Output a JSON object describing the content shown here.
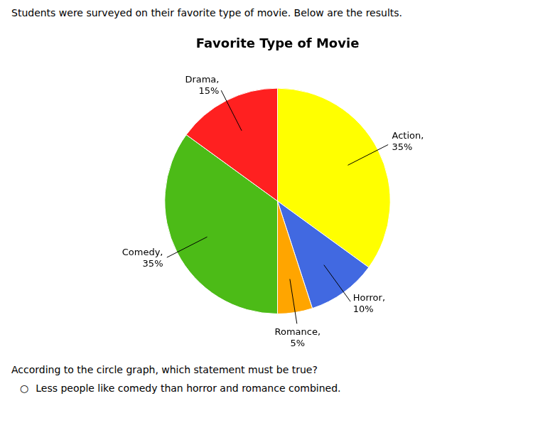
{
  "chart_data": {
    "type": "pie",
    "title": "Favorite Type of Movie",
    "values": [
      35,
      10,
      5,
      35,
      15
    ],
    "value_labels": [
      "Action,\n35%",
      "Horror,\n10%",
      "Romance,\n5%",
      "Comedy,\n35%",
      "Drama,\n15%"
    ],
    "colors": [
      "#FFFF00",
      "#4169E1",
      "#FFA500",
      "#4CBB17",
      "#FF2020"
    ],
    "data_labels": true,
    "legend": false,
    "annotations": [
      "Students were surveyed on their favorite type of movie.  Below are the results.",
      "According to the circle graph, which statement must be true?",
      "○",
      "Less people like comedy than horror and romance combined."
    ]
  }
}
